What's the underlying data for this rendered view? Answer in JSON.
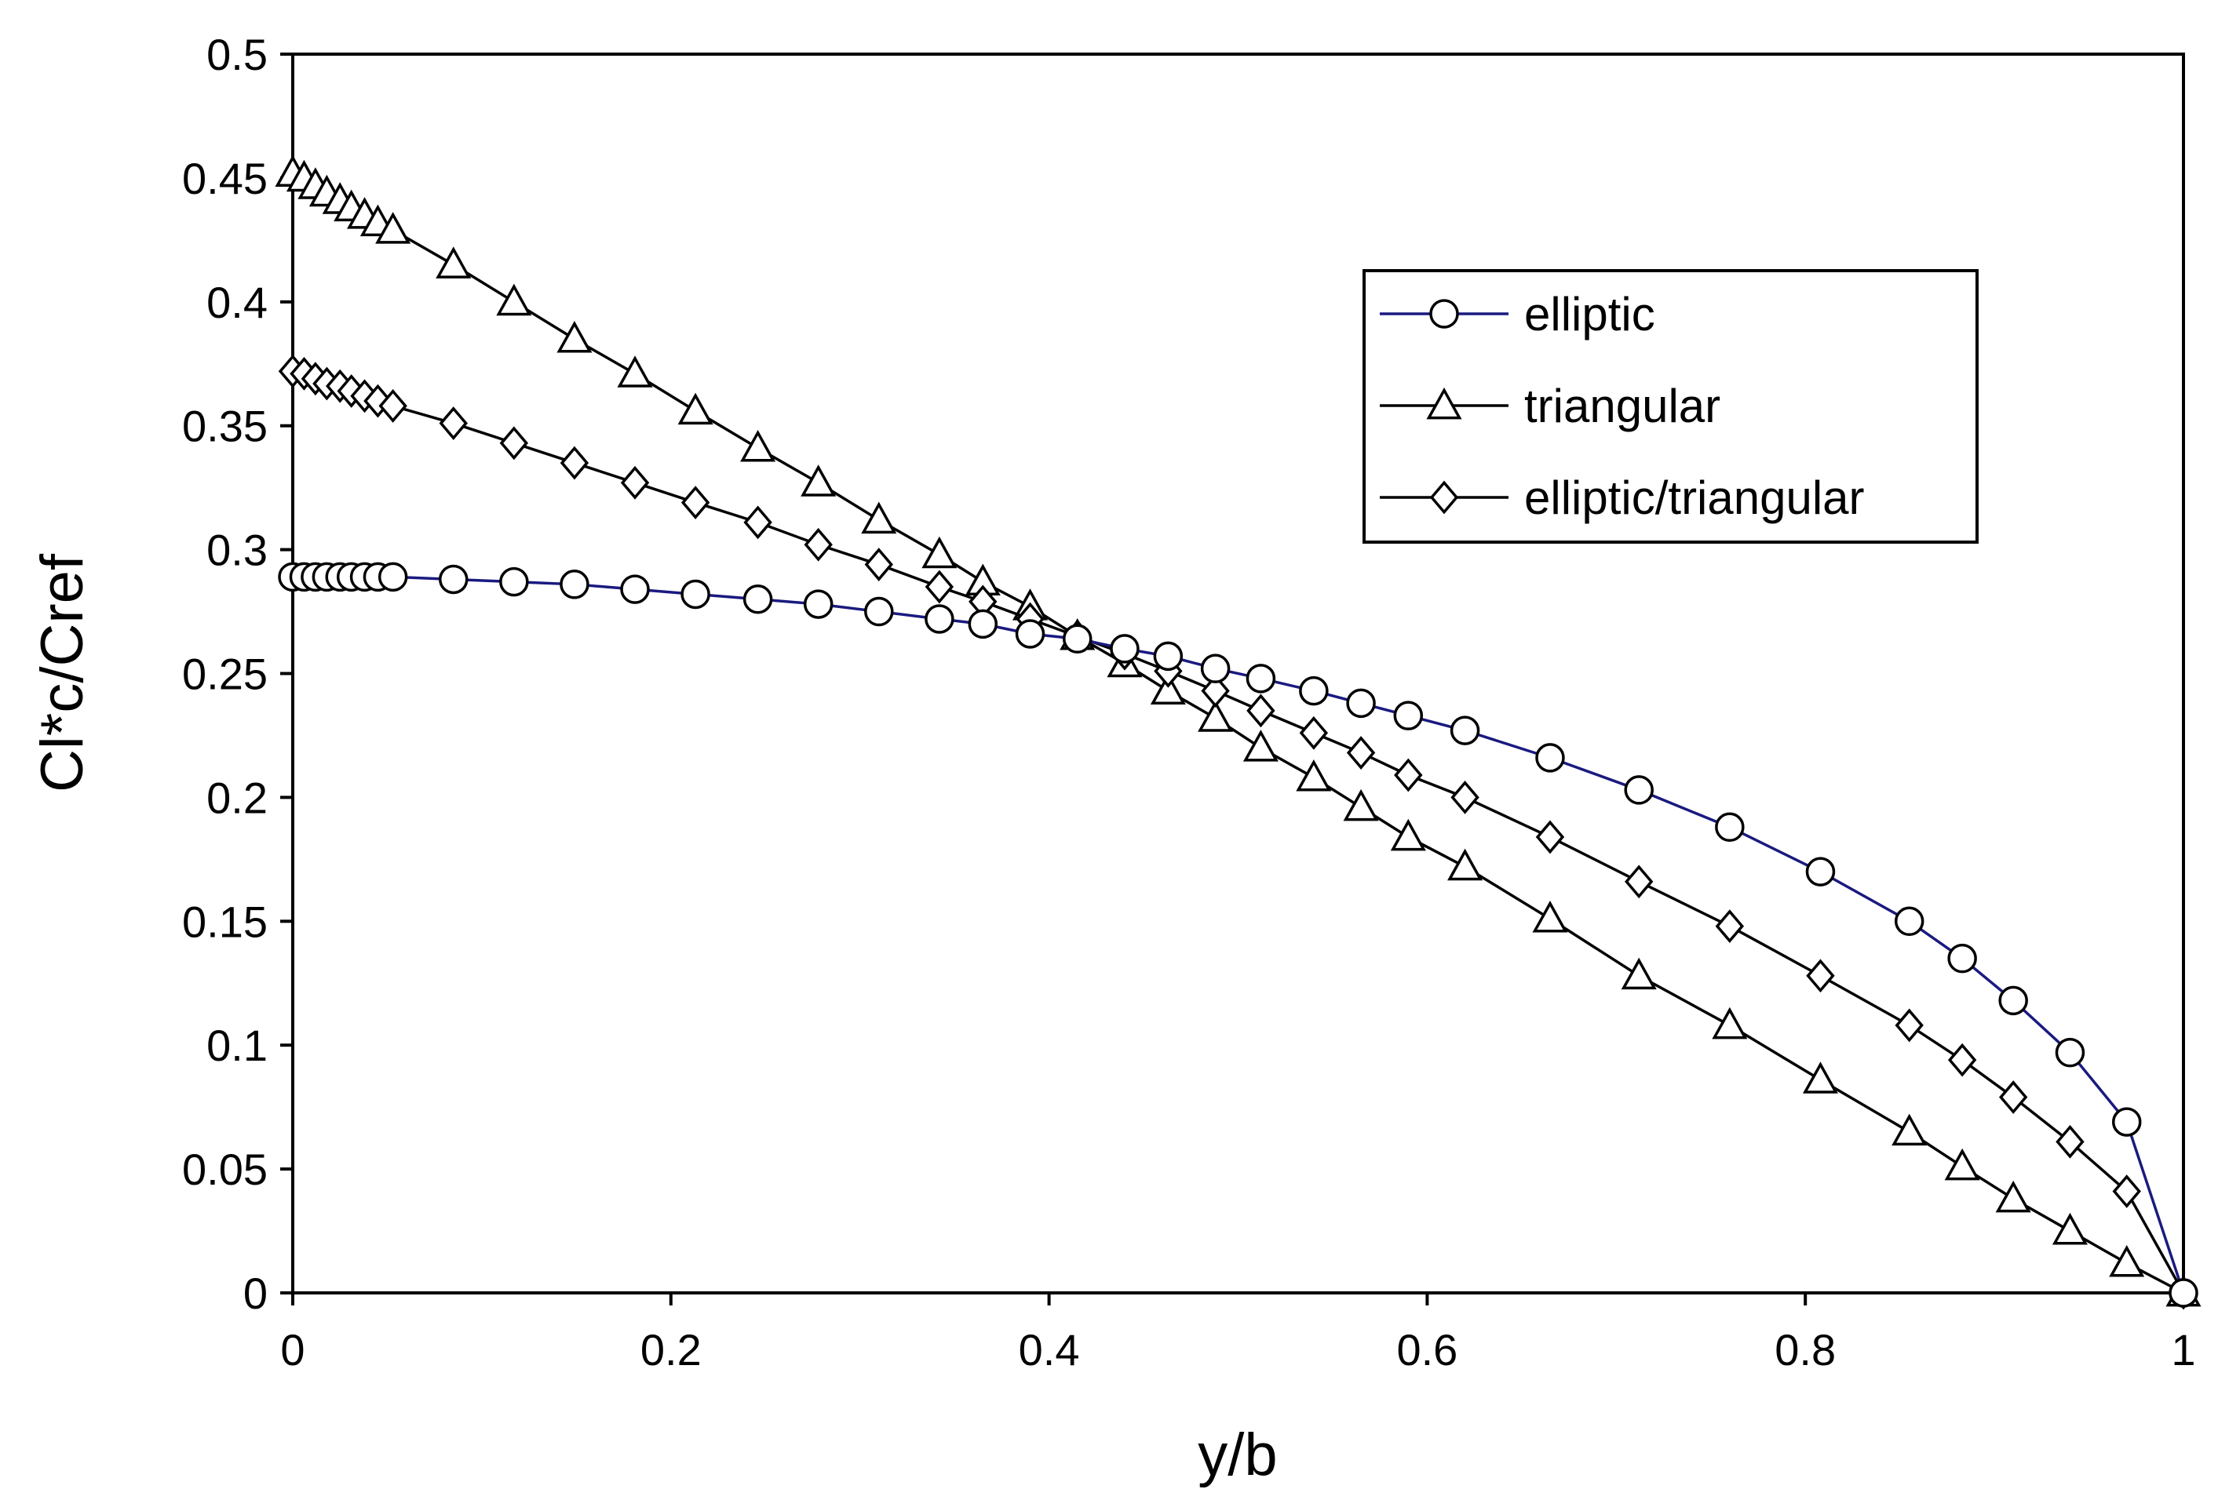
{
  "chart_data": {
    "type": "line",
    "title": "",
    "xlabel": "y/b",
    "ylabel": "Cl*c/Cref",
    "xlim": [
      0,
      1
    ],
    "ylim": [
      0,
      0.5
    ],
    "xticks": [
      0,
      0.2,
      0.4,
      0.6,
      0.8,
      1
    ],
    "xtick_labels": [
      "0",
      "0.2",
      "0.4",
      "0.6",
      "0.8",
      "1"
    ],
    "yticks": [
      0,
      0.05,
      0.1,
      0.15,
      0.2,
      0.25,
      0.3,
      0.35,
      0.4,
      0.45,
      0.5
    ],
    "ytick_labels": [
      "0",
      "0.05",
      "0.1",
      "0.15",
      "0.2",
      "0.25",
      "0.3",
      "0.35",
      "0.4",
      "0.45",
      "0.5"
    ],
    "grid": false,
    "legend_position": "top-right",
    "series": [
      {
        "name": "elliptic",
        "marker": "circle",
        "color": "#1a1a80",
        "x": [
          0,
          0.006,
          0.012,
          0.018,
          0.025,
          0.031,
          0.038,
          0.045,
          0.053,
          0.085,
          0.117,
          0.149,
          0.181,
          0.213,
          0.246,
          0.278,
          0.31,
          0.342,
          0.365,
          0.39,
          0.415,
          0.44,
          0.463,
          0.488,
          0.512,
          0.54,
          0.565,
          0.59,
          0.62,
          0.665,
          0.712,
          0.76,
          0.808,
          0.855,
          0.883,
          0.91,
          0.94,
          0.97,
          1.0
        ],
        "y": [
          0.289,
          0.289,
          0.289,
          0.289,
          0.289,
          0.289,
          0.289,
          0.289,
          0.289,
          0.288,
          0.287,
          0.286,
          0.284,
          0.282,
          0.28,
          0.278,
          0.275,
          0.272,
          0.27,
          0.266,
          0.264,
          0.26,
          0.257,
          0.252,
          0.248,
          0.243,
          0.238,
          0.233,
          0.227,
          0.216,
          0.203,
          0.188,
          0.17,
          0.15,
          0.135,
          0.118,
          0.097,
          0.069,
          0.0
        ]
      },
      {
        "name": "triangular",
        "marker": "triangle",
        "color": "#000000",
        "x": [
          0,
          0.006,
          0.012,
          0.018,
          0.025,
          0.031,
          0.038,
          0.045,
          0.053,
          0.085,
          0.117,
          0.149,
          0.181,
          0.213,
          0.246,
          0.278,
          0.31,
          0.342,
          0.365,
          0.39,
          0.415,
          0.44,
          0.463,
          0.488,
          0.512,
          0.54,
          0.565,
          0.59,
          0.62,
          0.665,
          0.712,
          0.76,
          0.808,
          0.855,
          0.883,
          0.91,
          0.94,
          0.97,
          1.0
        ],
        "y": [
          0.452,
          0.45,
          0.447,
          0.444,
          0.441,
          0.438,
          0.435,
          0.432,
          0.429,
          0.415,
          0.4,
          0.385,
          0.371,
          0.356,
          0.341,
          0.327,
          0.312,
          0.298,
          0.287,
          0.277,
          0.265,
          0.254,
          0.243,
          0.232,
          0.22,
          0.208,
          0.196,
          0.184,
          0.172,
          0.151,
          0.128,
          0.108,
          0.086,
          0.065,
          0.051,
          0.038,
          0.025,
          0.012,
          0.0
        ]
      },
      {
        "name": "elliptic/triangular",
        "marker": "diamond",
        "color": "#000000",
        "x": [
          0,
          0.006,
          0.012,
          0.018,
          0.025,
          0.031,
          0.038,
          0.045,
          0.053,
          0.085,
          0.117,
          0.149,
          0.181,
          0.213,
          0.246,
          0.278,
          0.31,
          0.342,
          0.365,
          0.39,
          0.415,
          0.44,
          0.463,
          0.488,
          0.512,
          0.54,
          0.565,
          0.59,
          0.62,
          0.665,
          0.712,
          0.76,
          0.808,
          0.855,
          0.883,
          0.91,
          0.94,
          0.97,
          1.0
        ],
        "y": [
          0.372,
          0.371,
          0.369,
          0.367,
          0.366,
          0.364,
          0.362,
          0.36,
          0.358,
          0.351,
          0.343,
          0.335,
          0.327,
          0.319,
          0.311,
          0.302,
          0.294,
          0.285,
          0.279,
          0.272,
          0.265,
          0.258,
          0.251,
          0.243,
          0.235,
          0.226,
          0.218,
          0.209,
          0.2,
          0.184,
          0.166,
          0.148,
          0.128,
          0.108,
          0.094,
          0.079,
          0.061,
          0.041,
          0.0
        ]
      }
    ]
  }
}
